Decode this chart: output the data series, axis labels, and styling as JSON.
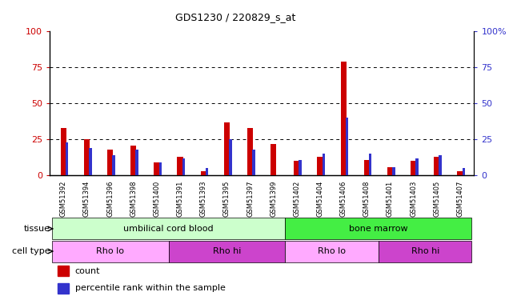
{
  "title": "GDS1230 / 220829_s_at",
  "samples": [
    "GSM51392",
    "GSM51394",
    "GSM51396",
    "GSM51398",
    "GSM51400",
    "GSM51391",
    "GSM51393",
    "GSM51395",
    "GSM51397",
    "GSM51399",
    "GSM51402",
    "GSM51404",
    "GSM51406",
    "GSM51408",
    "GSM51401",
    "GSM51403",
    "GSM51405",
    "GSM51407"
  ],
  "count": [
    33,
    25,
    18,
    21,
    9,
    13,
    3,
    37,
    33,
    22,
    10,
    13,
    79,
    11,
    6,
    10,
    13,
    3
  ],
  "percentile": [
    23,
    19,
    14,
    18,
    9,
    12,
    5,
    25,
    18,
    0,
    11,
    15,
    40,
    15,
    6,
    12,
    14,
    5
  ],
  "count_color": "#cc0000",
  "percentile_color": "#3333cc",
  "ylim": [
    0,
    100
  ],
  "yticks": [
    0,
    25,
    50,
    75,
    100
  ],
  "grid_lines": [
    25,
    50,
    75
  ],
  "tissue_groups": [
    {
      "label": "umbilical cord blood",
      "start": 0,
      "end": 9,
      "color": "#ccffcc"
    },
    {
      "label": "bone marrow",
      "start": 10,
      "end": 17,
      "color": "#44ee44"
    }
  ],
  "cell_type_groups": [
    {
      "label": "Rho lo",
      "start": 0,
      "end": 4,
      "color": "#ffaaff"
    },
    {
      "label": "Rho hi",
      "start": 5,
      "end": 9,
      "color": "#cc44cc"
    },
    {
      "label": "Rho lo",
      "start": 10,
      "end": 13,
      "color": "#ffaaff"
    },
    {
      "label": "Rho hi",
      "start": 14,
      "end": 17,
      "color": "#cc44cc"
    }
  ],
  "legend_count_label": "count",
  "legend_percentile_label": "percentile rank within the sample",
  "tissue_label": "tissue",
  "cell_type_label": "cell type",
  "red_bar_width": 0.25,
  "blue_bar_width": 0.12,
  "ylabel_left_color": "#cc0000",
  "ylabel_right_color": "#3333cc",
  "xtick_bg_color": "#dddddd",
  "plot_bg_color": "#ffffff"
}
